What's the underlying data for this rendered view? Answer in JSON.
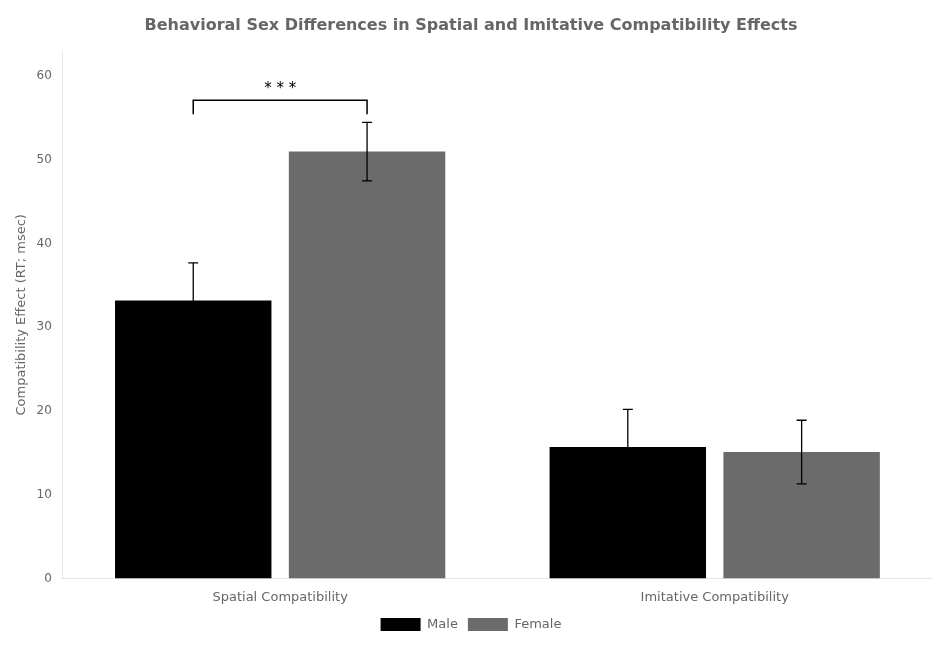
{
  "chart_data": {
    "type": "bar",
    "title": "Behavioral Sex Differences in Spatial and Imitative Compatibility Effects",
    "y_label": "Compatibility Effect (RT; msec)",
    "categories": [
      "Spatial Compatibility",
      "Imitative Compatibility"
    ],
    "series": [
      {
        "name": "Male",
        "color": "#000000",
        "values": [
          33.2,
          15.7
        ],
        "errors": [
          4.5,
          4.5
        ]
      },
      {
        "name": "Female",
        "color": "#6b6b6b",
        "values": [
          51.0,
          15.1
        ],
        "errors": [
          3.5,
          3.8
        ]
      }
    ],
    "ylim": [
      0,
      63
    ],
    "yticks": [
      0,
      10,
      20,
      30,
      40,
      50,
      60
    ],
    "grid": false,
    "legend": "bottom",
    "annotations": [
      {
        "text": "* * *",
        "category": "Spatial Compatibility"
      }
    ]
  }
}
